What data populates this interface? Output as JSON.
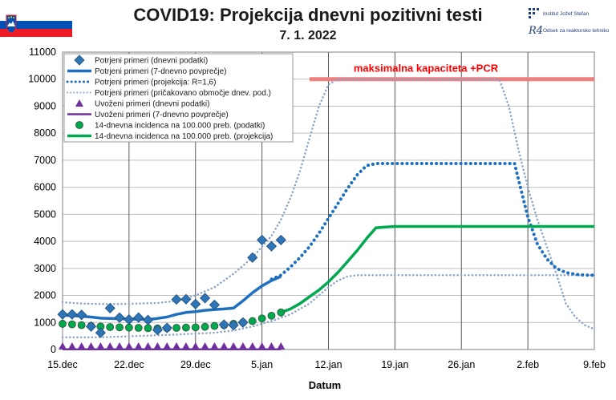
{
  "header": {
    "title": "COVID19: Projekcija  dnevni pozitivni testi",
    "subtitle": "7. 1. 2022",
    "logo_ijs": "Institut Jožef Stefan",
    "logo_r4": "Odsek za reaktorsko tehniko",
    "logo_r4_mark": "R4"
  },
  "colors": {
    "data_blue": "#2e75b6",
    "line_blue": "#1f6fc0",
    "dotted_light": "#8aa3c8",
    "imported_purple": "#7030a0",
    "incidence_green": "#00a84f",
    "capacity_red": "#f08080",
    "capacity_text": "#ff0000",
    "slovenia_white": "#ffffff",
    "slovenia_blue": "#0050b5",
    "slovenia_red": "#ed1c24"
  },
  "chart_data": {
    "type": "line",
    "xlabel": "Datum",
    "x_ticks": [
      "15.dec",
      "22.dec",
      "29.dec",
      "5.jan",
      "12.jan",
      "19.jan",
      "26.jan",
      "2.feb",
      "9.feb"
    ],
    "x_range_days": [
      0,
      56
    ],
    "ylim": [
      0,
      11000
    ],
    "y_ticks": [
      0,
      1000,
      2000,
      3000,
      4000,
      5000,
      6000,
      7000,
      8000,
      9000,
      10000,
      11000
    ],
    "grid": true,
    "legend_position": "top-left",
    "capacity_label": "maksimalna  kapaciteta +PCR",
    "capacity_value": 10000,
    "capacity_range_days": [
      26,
      56
    ],
    "legend": [
      "Potrjeni primeri (dnevni podatki)",
      "Potrjeni primeri (7-dnevno povprečje)",
      "Potrjeni primeri (projekcija: R=1,6)",
      "Potrjeni primeri (pričakovano območje dnev. pod.)",
      "Uvoženi primeri (dnevni podatki)",
      "Uvoženi primeri (7-dnevno povprečje)",
      "14-dnevna incidenca na 100.000 preb. (podatki)",
      "14-dnevna incidenca na 100.000 preb. (projekcija)"
    ],
    "series": [
      {
        "name": "Potrjeni primeri (dnevni podatki)",
        "style": "diamond",
        "x": [
          0,
          1,
          2,
          3,
          4,
          5,
          6,
          7,
          8,
          9,
          10,
          11,
          12,
          13,
          14,
          15,
          16,
          17,
          18,
          19,
          20,
          21,
          22,
          23
        ],
        "y": [
          1300,
          1300,
          1280,
          850,
          620,
          1530,
          1180,
          1110,
          1180,
          1090,
          720,
          800,
          1850,
          1860,
          1680,
          1900,
          1650,
          920,
          900,
          1000,
          3400,
          4050,
          3820,
          4050
        ]
      },
      {
        "name": "Potrjeni primeri (7-dnevno povprečje)",
        "style": "line",
        "x": [
          0,
          1,
          2,
          3,
          4,
          5,
          6,
          7,
          8,
          9,
          10,
          11,
          12,
          13,
          14,
          15,
          16,
          17,
          18,
          19,
          20,
          21,
          22,
          23
        ],
        "y": [
          1270,
          1250,
          1230,
          1200,
          1160,
          1150,
          1140,
          1130,
          1120,
          1110,
          1150,
          1200,
          1300,
          1370,
          1400,
          1450,
          1480,
          1500,
          1530,
          1800,
          2100,
          2350,
          2550,
          2700
        ]
      },
      {
        "name": "Potrjeni primeri (projekcija: R=1,6)",
        "style": "dotted",
        "x": [
          22,
          23,
          24,
          25,
          26,
          27,
          28,
          29,
          30,
          31,
          32,
          33,
          34,
          46,
          47,
          47.6,
          48,
          49,
          50,
          51,
          52,
          53,
          54,
          55,
          56
        ],
        "y": [
          2600,
          2750,
          3050,
          3400,
          3800,
          4300,
          4850,
          5400,
          5950,
          6450,
          6800,
          6880,
          6880,
          6880,
          6880,
          6880,
          6300,
          4900,
          3900,
          3350,
          3000,
          2850,
          2780,
          2750,
          2750
        ]
      },
      {
        "name": "Potrjeni primeri (pričakovano območje dnev. pod.) zgornja",
        "style": "dotted-light",
        "x": [
          0,
          2,
          4,
          6,
          8,
          10,
          12,
          14,
          16,
          18,
          20,
          22,
          23,
          24,
          25,
          26,
          27,
          28,
          29,
          46,
          47,
          48,
          49,
          50,
          51,
          52,
          53,
          54,
          55,
          56
        ],
        "y": [
          1750,
          1700,
          1680,
          1680,
          1700,
          1720,
          1800,
          2000,
          2300,
          2800,
          3400,
          4200,
          4800,
          5600,
          6600,
          7800,
          9000,
          9800,
          10000,
          10000,
          9000,
          7400,
          6000,
          4800,
          3800,
          2800,
          1700,
          1200,
          900,
          750
        ]
      },
      {
        "name": "Potrjeni primeri (pričakovano območje dnev. pod.) spodnja",
        "style": "dotted-light",
        "x": [
          0,
          4,
          8,
          12,
          16,
          18,
          20,
          22,
          24,
          26,
          27,
          28,
          29,
          30,
          31,
          32,
          33,
          34,
          35,
          46,
          47,
          48,
          49,
          50,
          51,
          52,
          53,
          54,
          55,
          56
        ],
        "y": [
          450,
          450,
          500,
          550,
          620,
          700,
          850,
          1050,
          1300,
          1700,
          2000,
          2300,
          2550,
          2700,
          2750,
          2750,
          2750,
          2750,
          2750,
          2750,
          2750,
          2750,
          2750,
          2750,
          2750,
          2750,
          2750,
          2750,
          2750,
          2750
        ]
      },
      {
        "name": "Uvoženi primeri (dnevni podatki)",
        "style": "triangle",
        "x": [
          0,
          1,
          2,
          3,
          4,
          5,
          6,
          7,
          8,
          9,
          10,
          11,
          12,
          13,
          14,
          15,
          16,
          17,
          18,
          19,
          20,
          21,
          22,
          23
        ],
        "y": [
          0,
          0,
          0,
          0,
          0,
          0,
          0,
          0,
          0,
          0,
          0,
          0,
          0,
          0,
          0,
          0,
          0,
          0,
          0,
          0,
          0,
          0,
          0,
          0
        ]
      },
      {
        "name": "Uvoženi primeri (7-dnevno povprečje)",
        "style": "purple-line",
        "x": [
          0,
          23
        ],
        "y": [
          10,
          10
        ]
      },
      {
        "name": "14-dnevna incidenca na 100.000 preb. (podatki)",
        "style": "circle",
        "x": [
          0,
          1,
          2,
          3,
          4,
          5,
          6,
          7,
          8,
          9,
          10,
          11,
          12,
          13,
          14,
          15,
          16,
          17,
          18,
          19,
          20,
          21,
          22,
          23
        ],
        "y": [
          950,
          930,
          900,
          870,
          850,
          830,
          820,
          810,
          800,
          790,
          780,
          790,
          800,
          810,
          820,
          840,
          870,
          900,
          950,
          1000,
          1050,
          1150,
          1250,
          1370
        ]
      },
      {
        "name": "14-dnevna incidenca na 100.000 preb. (projekcija)",
        "style": "green-line",
        "x": [
          23,
          24,
          25,
          26,
          27,
          28,
          29,
          30,
          31,
          32,
          33,
          34,
          35,
          36,
          37,
          37.5,
          38,
          56
        ],
        "y": [
          1370,
          1500,
          1700,
          1950,
          2200,
          2500,
          2850,
          3250,
          3650,
          4100,
          4500,
          4530,
          4550,
          4550,
          4550,
          4550,
          4550,
          4550
        ]
      }
    ]
  }
}
